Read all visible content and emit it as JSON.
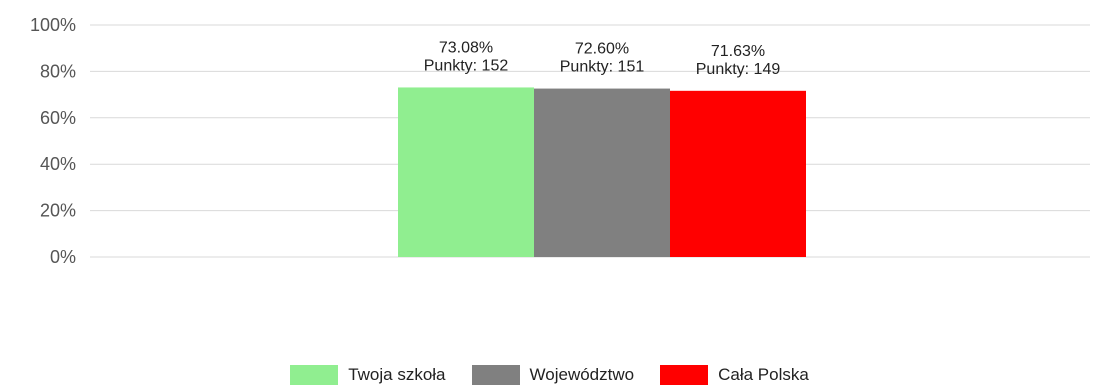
{
  "chart_data": {
    "type": "bar",
    "categories": [
      "Twoja szkoła",
      "Województwo",
      "Cała Polska"
    ],
    "values": [
      73.08,
      72.6,
      71.63
    ],
    "colors": [
      "#90ee90",
      "#808080",
      "#ff0000"
    ],
    "data_labels": [
      {
        "percent_label": "73.08%",
        "points_label": "Punkty: 152"
      },
      {
        "percent_label": "72.60%",
        "points_label": "Punkty: 151"
      },
      {
        "percent_label": "71.63%",
        "points_label": "Punkty: 149"
      }
    ],
    "yticks": [
      0,
      20,
      40,
      60,
      80,
      100
    ],
    "ytick_labels": [
      "0%",
      "20%",
      "40%",
      "60%",
      "80%",
      "100%"
    ],
    "ylim": [
      0,
      100
    ],
    "grid": true,
    "legend_position": "bottom"
  }
}
